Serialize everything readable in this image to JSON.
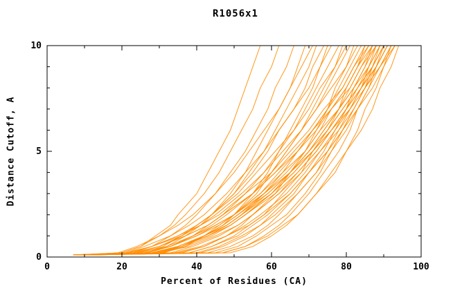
{
  "chart_data": {
    "type": "line",
    "title": "R1056x1",
    "xlabel": "Percent of Residues (CA)",
    "ylabel": "Distance Cutoff, A",
    "xlim": [
      0,
      100
    ],
    "ylim": [
      0,
      10
    ],
    "x_ticks": [
      0,
      20,
      40,
      60,
      80,
      100
    ],
    "x_minor_ticks": [
      10,
      30,
      50,
      70,
      90
    ],
    "y_ticks": [
      0,
      5,
      10
    ],
    "y_minor_ticks": [
      1,
      2,
      3,
      4,
      6,
      7,
      8,
      9
    ],
    "grid": false,
    "legend": "none",
    "line_color": "#ff8c00",
    "cutoff_grid": [
      0.1,
      0.2,
      0.5,
      1,
      1.5,
      2,
      3,
      4,
      5,
      6,
      7,
      8,
      9,
      10
    ],
    "curves_percent_at_cutoff": [
      [
        7,
        20,
        25,
        29,
        33,
        35,
        40,
        43,
        46,
        49,
        51,
        53,
        55,
        57
      ],
      [
        8,
        20,
        25,
        30,
        34,
        37,
        42,
        46,
        49,
        52,
        55,
        57,
        60,
        62
      ],
      [
        9,
        23,
        28,
        33,
        37,
        40,
        45,
        49,
        53,
        56,
        59,
        61,
        64,
        66
      ],
      [
        10,
        25,
        31,
        36,
        40,
        44,
        49,
        53,
        56,
        59,
        62,
        65,
        67,
        69
      ],
      [
        11,
        19,
        24,
        30,
        35,
        39,
        45,
        50,
        54,
        58,
        62,
        65,
        68,
        71
      ],
      [
        12,
        26,
        32,
        37,
        41,
        44,
        50,
        54,
        58,
        61,
        64,
        67,
        70,
        72
      ],
      [
        13,
        24,
        30,
        36,
        40,
        44,
        50,
        55,
        59,
        62,
        66,
        69,
        71,
        74
      ],
      [
        7,
        31,
        37,
        42,
        46,
        50,
        55,
        59,
        62,
        65,
        68,
        71,
        73,
        75
      ],
      [
        8,
        21,
        26,
        33,
        38,
        42,
        48,
        53,
        58,
        62,
        66,
        70,
        73,
        76
      ],
      [
        9,
        27,
        33,
        39,
        43,
        47,
        53,
        58,
        62,
        66,
        69,
        72,
        75,
        78
      ],
      [
        10,
        31,
        36,
        42,
        47,
        50,
        56,
        60,
        64,
        68,
        71,
        74,
        77,
        79
      ],
      [
        11,
        22,
        28,
        35,
        40,
        44,
        51,
        56,
        61,
        66,
        70,
        73,
        77,
        80
      ],
      [
        12,
        26,
        33,
        39,
        44,
        48,
        55,
        60,
        64,
        68,
        72,
        75,
        78,
        81
      ],
      [
        13,
        36,
        42,
        48,
        52,
        55,
        61,
        65,
        69,
        72,
        75,
        77,
        80,
        82
      ],
      [
        7,
        22,
        28,
        35,
        41,
        45,
        52,
        58,
        63,
        68,
        72,
        76,
        80,
        83
      ],
      [
        8,
        29,
        36,
        42,
        47,
        51,
        58,
        63,
        67,
        71,
        75,
        78,
        81,
        84
      ],
      [
        9,
        26,
        33,
        40,
        46,
        50,
        57,
        62,
        67,
        71,
        75,
        79,
        82,
        85
      ],
      [
        10,
        38,
        44,
        50,
        54,
        58,
        63,
        68,
        71,
        75,
        78,
        80,
        83,
        85
      ],
      [
        11,
        21,
        28,
        36,
        41,
        46,
        53,
        60,
        65,
        70,
        74,
        79,
        82,
        86
      ],
      [
        12,
        29,
        36,
        43,
        48,
        52,
        58,
        64,
        69,
        73,
        76,
        80,
        83,
        86
      ],
      [
        13,
        41,
        47,
        53,
        57,
        60,
        66,
        70,
        74,
        77,
        80,
        82,
        85,
        87
      ],
      [
        7,
        23,
        30,
        37,
        43,
        47,
        55,
        61,
        66,
        71,
        76,
        80,
        83,
        87
      ],
      [
        8,
        31,
        37,
        44,
        49,
        53,
        60,
        65,
        70,
        74,
        78,
        81,
        84,
        87
      ],
      [
        9,
        28,
        35,
        42,
        48,
        52,
        59,
        65,
        70,
        74,
        78,
        82,
        85,
        88
      ],
      [
        10,
        43,
        49,
        55,
        59,
        62,
        67,
        72,
        75,
        78,
        81,
        84,
        86,
        88
      ],
      [
        11,
        23,
        30,
        37,
        43,
        47,
        55,
        61,
        67,
        72,
        76,
        81,
        84,
        88
      ],
      [
        12,
        33,
        39,
        46,
        51,
        55,
        62,
        67,
        72,
        76,
        80,
        83,
        86,
        89
      ],
      [
        13,
        26,
        33,
        40,
        45,
        50,
        57,
        63,
        69,
        73,
        78,
        82,
        86,
        89
      ],
      [
        7,
        45,
        51,
        56,
        60,
        64,
        69,
        73,
        76,
        79,
        82,
        85,
        87,
        89
      ],
      [
        8,
        28,
        35,
        42,
        48,
        52,
        60,
        66,
        71,
        75,
        79,
        83,
        87,
        90
      ],
      [
        9,
        35,
        42,
        48,
        53,
        57,
        64,
        69,
        73,
        77,
        81,
        84,
        87,
        90
      ],
      [
        10,
        28,
        35,
        42,
        47,
        51,
        59,
        65,
        70,
        75,
        79,
        83,
        87,
        90
      ],
      [
        11,
        47,
        53,
        58,
        62,
        65,
        70,
        74,
        78,
        81,
        83,
        86,
        88,
        90
      ],
      [
        12,
        29,
        36,
        43,
        49,
        53,
        61,
        67,
        72,
        76,
        80,
        84,
        88,
        91
      ],
      [
        13,
        38,
        44,
        51,
        55,
        59,
        65,
        70,
        75,
        79,
        82,
        85,
        88,
        91
      ],
      [
        7,
        30,
        36,
        43,
        49,
        53,
        60,
        66,
        71,
        76,
        80,
        84,
        88,
        91
      ],
      [
        8,
        49,
        55,
        60,
        64,
        67,
        72,
        76,
        80,
        83,
        85,
        88,
        90,
        92
      ],
      [
        9,
        30,
        38,
        45,
        51,
        55,
        62,
        68,
        73,
        78,
        82,
        85,
        89,
        92
      ],
      [
        10,
        40,
        46,
        52,
        57,
        61,
        67,
        72,
        76,
        80,
        83,
        86,
        89,
        92
      ],
      [
        11,
        24,
        32,
        39,
        45,
        50,
        58,
        65,
        71,
        76,
        81,
        85,
        89,
        93
      ],
      [
        12,
        34,
        41,
        48,
        54,
        58,
        65,
        70,
        75,
        79,
        83,
        87,
        90,
        93
      ],
      [
        13,
        47,
        53,
        59,
        63,
        67,
        72,
        77,
        80,
        84,
        87,
        89,
        92,
        94
      ]
    ]
  }
}
